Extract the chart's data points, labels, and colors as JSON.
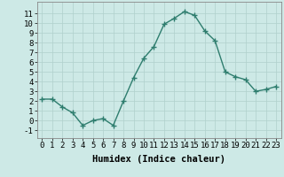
{
  "x": [
    0,
    1,
    2,
    3,
    4,
    5,
    6,
    7,
    8,
    9,
    10,
    11,
    12,
    13,
    14,
    15,
    16,
    17,
    18,
    19,
    20,
    21,
    22,
    23
  ],
  "y": [
    2.2,
    2.2,
    1.4,
    0.8,
    -0.5,
    0.0,
    0.2,
    -0.5,
    2.0,
    4.4,
    6.4,
    7.6,
    9.9,
    10.5,
    11.2,
    10.8,
    9.2,
    8.2,
    5.0,
    4.5,
    4.2,
    3.0,
    3.2,
    3.5
  ],
  "line_color": "#2e7d6e",
  "marker": "+",
  "marker_size": 4,
  "xlabel": "Humidex (Indice chaleur)",
  "xlim": [
    -0.5,
    23.5
  ],
  "ylim": [
    -1.8,
    12.2
  ],
  "yticks": [
    -1,
    0,
    1,
    2,
    3,
    4,
    5,
    6,
    7,
    8,
    9,
    10,
    11
  ],
  "xticks": [
    0,
    1,
    2,
    3,
    4,
    5,
    6,
    7,
    8,
    9,
    10,
    11,
    12,
    13,
    14,
    15,
    16,
    17,
    18,
    19,
    20,
    21,
    22,
    23
  ],
  "bg_color": "#cde9e6",
  "grid_color": "#b0d0cc",
  "tick_label_fontsize": 6.5,
  "xlabel_fontsize": 7.5,
  "linewidth": 1.0
}
